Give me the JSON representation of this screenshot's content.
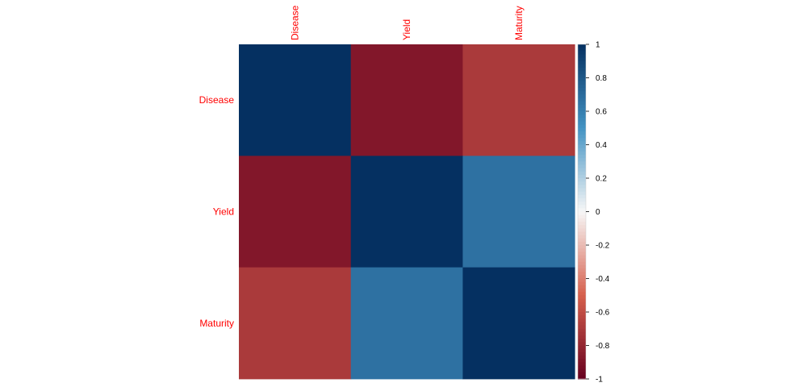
{
  "chart_data": {
    "type": "heatmap",
    "title": "",
    "variables": [
      "Disease",
      "Yield",
      "Maturity"
    ],
    "matrix": [
      [
        1.0,
        -0.88,
        -0.7
      ],
      [
        -0.88,
        1.0,
        0.67
      ],
      [
        -0.7,
        0.67,
        1.0
      ]
    ],
    "colorbar": {
      "range": [
        -1,
        1
      ],
      "ticks": [
        "1",
        "0.8",
        "0.6",
        "0.4",
        "0.2",
        "0",
        "-0.2",
        "-0.4",
        "-0.6",
        "-0.8",
        "-1"
      ]
    },
    "label_color": "#ff0000",
    "palette": {
      "low": "#67001f",
      "mid_low": "#d6604d",
      "mid": "#f7f7f7",
      "mid_high": "#4393c3",
      "high": "#053061"
    }
  }
}
